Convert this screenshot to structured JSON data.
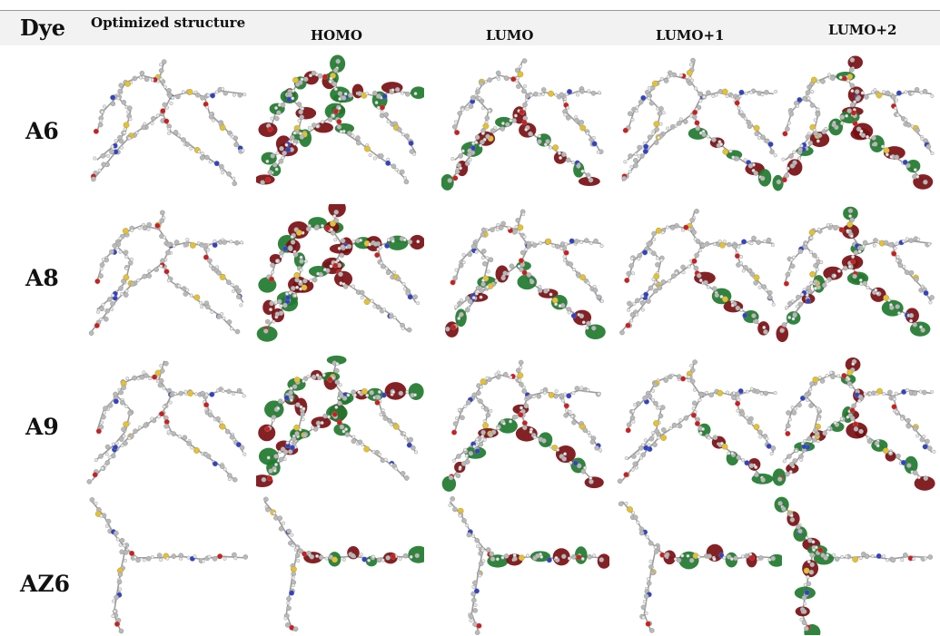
{
  "header": {
    "dye": "Dye",
    "columns": [
      "Optimized structure",
      "HOMO",
      "LUMO",
      "LUMO+1",
      "LUMO+2"
    ]
  },
  "rows": [
    "A6",
    "A8",
    "A9",
    "AZ6"
  ],
  "colors": {
    "carbon": "#b9b9b9",
    "hydrogen": "#e9e9e9",
    "sulfur": "#e6c22a",
    "nitrogen": "#3142c8",
    "oxygen": "#d21c1c",
    "orbital_positive": "#7a0e12",
    "orbital_negative": "#1f7a2e",
    "header_band": "#f2f2f2"
  }
}
